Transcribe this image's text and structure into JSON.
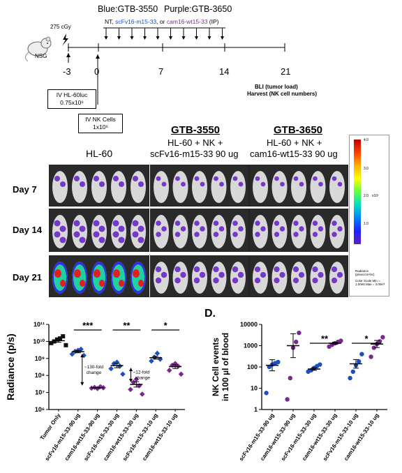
{
  "timeline": {
    "header_blue": "Blue:GTB-3550",
    "header_purple": "Purple:GTB-3650",
    "treatment_prefix": "NT, ",
    "treatment_blue": "scFv16-m15-33",
    "treatment_mid": ", or ",
    "treatment_purple": "cam16-wt15-33",
    "treatment_suffix": " (IP)",
    "dose": "275 cGy",
    "mouse_label": "NSG",
    "days": [
      "-3",
      "0",
      "7",
      "14",
      "21"
    ],
    "box1_line1": "IV HL-60luc",
    "box1_line2": "0.75x10⁶",
    "box2_line1": "IV NK Cells",
    "box2_line2": "1x10⁶",
    "readout_line1": "BLI (tumor load)",
    "readout_line2": "Harvest (NK cell numbers)"
  },
  "imaging": {
    "col1_title": "HL-60",
    "col2_title": "GTB-3550",
    "col2_sub1": "HL-60 + NK +",
    "col2_sub2": "scFv16-m15-33 90 ug",
    "col3_title": "GTB-3650",
    "col3_sub1": "HL-60 + NK +",
    "col3_sub2": "cam16-wt15-33 90 ug",
    "rows": [
      "Day 7",
      "Day 14",
      "Day 21"
    ],
    "colorbar_labels": [
      "4.0",
      "3.0",
      "2.0",
      "1.0"
    ],
    "colorbar_unit": "x10⁷",
    "colorbar_caption": "Radiance (p/sec/cm²/sr)",
    "colorbar_minmax": "Color Scale Min = 1.00e5 Max = 4.00e7"
  },
  "colors": {
    "blue": "#1f4fbf",
    "purple": "#7a2a8e",
    "black": "#111111"
  },
  "chart_data": [
    {
      "type": "scatter",
      "title": "",
      "ylabel": "Radiance (p/s)",
      "yscale": "log",
      "ylim": [
        1000000,
        100000000000
      ],
      "yticks": [
        "10⁶",
        "10⁷",
        "10⁸",
        "10⁹",
        "10¹⁰",
        "10¹¹"
      ],
      "categories": [
        "Tumor Only",
        "scFv16-m15-33-90 ug",
        "cam16-wt15-33-90 ug",
        "scFv16-m15-33-30 ug",
        "cam16-wt15-33-30 ug",
        "scFv16-m15-33-10 ug",
        "cam16-wt15-33-10 ug"
      ],
      "point_colors": [
        "#111111",
        "#1f4fbf",
        "#7a2a8e",
        "#1f4fbf",
        "#7a2a8e",
        "#1f4fbf",
        "#7a2a8e"
      ],
      "points": [
        [
          8000000000,
          10000000000,
          13000000000,
          15000000000,
          20000000000,
          6000000000
        ],
        [
          1800000000,
          2600000000,
          3000000000,
          3500000000,
          1500000000
        ],
        [
          18000000,
          20000000,
          17000000,
          22000000,
          19000000
        ],
        [
          250000000,
          500000000,
          600000000,
          350000000,
          120000000
        ],
        [
          15000000,
          40000000,
          60000000,
          25000000,
          8000000
        ],
        [
          700000000,
          1200000000,
          2000000000,
          900000000
        ],
        [
          200000000,
          400000000,
          500000000,
          350000000,
          120000000
        ]
      ],
      "means": [
        11000000000,
        2500000000,
        19000000,
        380000000,
        30000000,
        1100000000,
        330000000
      ],
      "significance": [
        {
          "from": 1,
          "to": 2,
          "label": "***"
        },
        {
          "from": 3,
          "to": 4,
          "label": "**"
        },
        {
          "from": 5,
          "to": 6,
          "label": "*"
        }
      ],
      "annotations": [
        {
          "line1": "~130-fold",
          "line2": "change"
        },
        {
          "line1": "~12-fold",
          "line2": "change"
        }
      ]
    },
    {
      "type": "scatter",
      "panel_label": "D.",
      "title": "",
      "ylabel_line1": "NK Cell events",
      "ylabel_line2": "in 100 µl of blood",
      "yscale": "log",
      "ylim": [
        1,
        10000
      ],
      "yticks": [
        "1",
        "10",
        "100",
        "1000",
        "10000"
      ],
      "categories": [
        "scFv16-m15-33-90 ug",
        "cam16-wt15-33-90 ug",
        "scFv16-m15-33-30 ug",
        "cam16-wt15-33-30 ug",
        "scFv16-m15-33-10 ug",
        "cam16-wt15-33-10 ug"
      ],
      "point_colors": [
        "#1f4fbf",
        "#7a2a8e",
        "#1f4fbf",
        "#7a2a8e",
        "#1f4fbf",
        "#7a2a8e"
      ],
      "points": [
        [
          6,
          100,
          130,
          150,
          170
        ],
        [
          3,
          30,
          800,
          1500,
          4000
        ],
        [
          60,
          70,
          90,
          110,
          130
        ],
        [
          900,
          1100,
          1300,
          1500,
          1700
        ],
        [
          30,
          60,
          120,
          180,
          400
        ],
        [
          300,
          800,
          1200,
          1600,
          2500
        ]
      ],
      "means": [
        120,
        1000,
        80,
        1300,
        140,
        1200
      ],
      "significance": [
        {
          "from": 2,
          "to": 3,
          "label": "**"
        },
        {
          "from": 4,
          "to": 5,
          "label": "*"
        }
      ]
    }
  ]
}
